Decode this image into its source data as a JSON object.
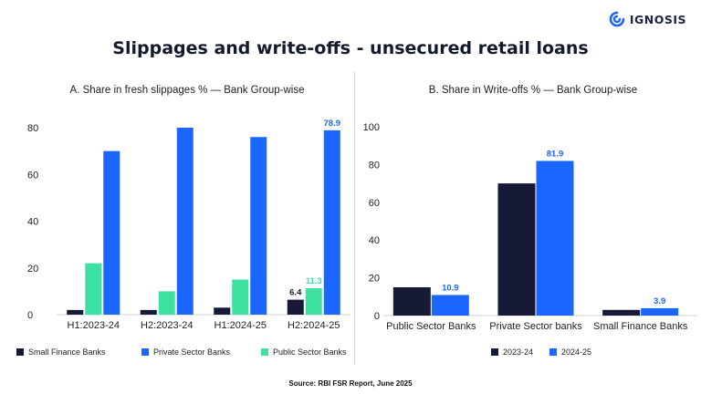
{
  "logo": {
    "text": "IGNOSIS",
    "icon": "ignosis-logo-icon"
  },
  "title": "Slippages and write-offs - unsecured retail loans",
  "source": "Source: RBI FSR Report, June 2025",
  "colors": {
    "navy": "#161a36",
    "blue": "#1a66ff",
    "green": "#3de2a3"
  },
  "chart_data": [
    {
      "type": "bar",
      "title": "A. Share in fresh slippages %  — Bank Group-wise",
      "categories": [
        "H1:2023-24",
        "H2:2023-24",
        "H1:2024-25",
        "H2:2024-25"
      ],
      "ylim": [
        0,
        80
      ],
      "yticks": [
        0,
        20,
        40,
        60,
        80
      ],
      "series": [
        {
          "name": "Small Finance Banks",
          "color": "#161a36",
          "values": [
            2,
            2,
            3,
            6.4
          ]
        },
        {
          "name": "Public Sector Banks",
          "color": "#3de2a3",
          "values": [
            22,
            10,
            15,
            11.3
          ]
        },
        {
          "name": "Private Sector Banks",
          "color": "#1a66ff",
          "values": [
            70,
            80,
            76,
            78.9
          ]
        }
      ],
      "data_labels": [
        {
          "series": 0,
          "index": 3,
          "text": "6.4",
          "color": "#161a36"
        },
        {
          "series": 1,
          "index": 3,
          "text": "11.3",
          "color": "#3de2a3"
        },
        {
          "series": 2,
          "index": 3,
          "text": "78.9",
          "color": "#1a66ff"
        }
      ],
      "legend": [
        "Small Finance Banks",
        "Private Sector Banks",
        "Public Sector Banks"
      ],
      "legend_colors": [
        "#161a36",
        "#1a66ff",
        "#3de2a3"
      ]
    },
    {
      "type": "bar",
      "title": "B. Share in Write-offs % — Bank Group-wise",
      "categories": [
        "Public Sector Banks",
        "Private Sector banks",
        "Small Finance Banks"
      ],
      "ylim": [
        0,
        100
      ],
      "yticks": [
        0,
        20,
        40,
        60,
        80,
        100
      ],
      "series": [
        {
          "name": "2023-24",
          "color": "#161a36",
          "values": [
            15,
            70,
            3
          ]
        },
        {
          "name": "2024-25",
          "color": "#1a66ff",
          "values": [
            10.9,
            81.9,
            3.9
          ]
        }
      ],
      "data_labels": [
        {
          "series": 1,
          "index": 0,
          "text": "10.9",
          "color": "#1a66ff"
        },
        {
          "series": 1,
          "index": 1,
          "text": "81.9",
          "color": "#1a66ff"
        },
        {
          "series": 1,
          "index": 2,
          "text": "3.9",
          "color": "#1a66ff"
        }
      ],
      "legend": [
        "2023-24",
        "2024-25"
      ],
      "legend_colors": [
        "#161a36",
        "#1a66ff"
      ]
    }
  ]
}
